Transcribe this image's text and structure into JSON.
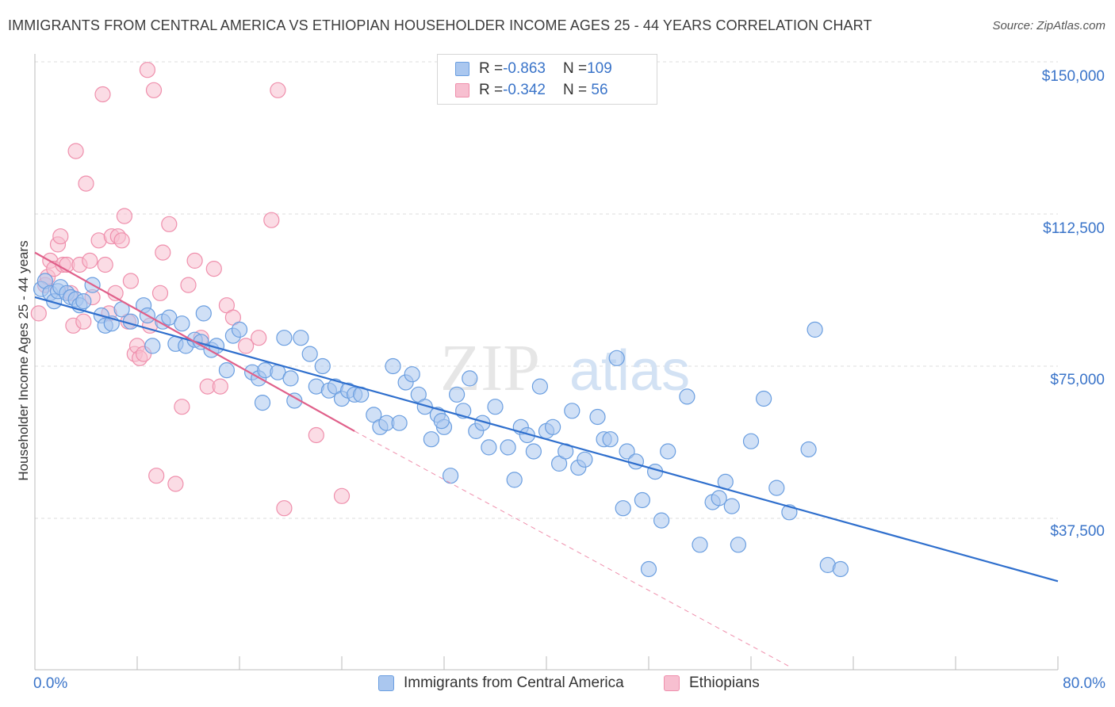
{
  "header": {
    "title": "IMMIGRANTS FROM CENTRAL AMERICA VS ETHIOPIAN HOUSEHOLDER INCOME AGES 25 - 44 YEARS CORRELATION CHART",
    "source": "Source: ZipAtlas.com"
  },
  "watermark": {
    "zip": "ZIP",
    "atlas": "atlas"
  },
  "legend": {
    "series1": {
      "r_label": "R = ",
      "r_value": "-0.863",
      "n_label": "N = ",
      "n_value": "109",
      "color": "#6a9ee0"
    },
    "series2": {
      "r_label": "R = ",
      "r_value": "-0.342",
      "n_label": "N = ",
      "n_value": " 56",
      "color": "#ef8fac"
    }
  },
  "bottom_legend": {
    "item1": "Immigrants from Central America",
    "item2": "Ethiopians"
  },
  "colors": {
    "blue_fill": "#aac7ef",
    "blue_stroke": "#6a9ee0",
    "blue_line": "#2f6fcd",
    "pink_fill": "#f7bfd0",
    "pink_stroke": "#ef8fac",
    "pink_line": "#e0608a",
    "tick_text": "#3a74c9"
  },
  "chart_data": {
    "type": "scatter",
    "title": "IMMIGRANTS FROM CENTRAL AMERICA VS ETHIOPIAN HOUSEHOLDER INCOME AGES 25 - 44 YEARS CORRELATION CHART",
    "xlabel": "",
    "ylabel": "Householder Income Ages 25 - 44 years",
    "xlim": [
      0,
      80
    ],
    "ylim": [
      0,
      155000
    ],
    "x_tick_labels": [
      "0.0%",
      "80.0%"
    ],
    "y_ticks": [
      37500,
      75000,
      112500,
      150000
    ],
    "y_tick_labels": [
      "$37,500",
      "$75,000",
      "$112,500",
      "$150,000"
    ],
    "grid": "horizontal dashed",
    "legend_position": "top-center",
    "series": [
      {
        "name": "Immigrants from Central America",
        "r": -0.863,
        "n": 109,
        "trend": {
          "x": [
            0,
            80
          ],
          "y": [
            92000,
            22000
          ]
        },
        "points": [
          [
            0.5,
            94000
          ],
          [
            0.8,
            96000
          ],
          [
            1.2,
            93000
          ],
          [
            1.5,
            91000
          ],
          [
            1.8,
            93500
          ],
          [
            2.0,
            94500
          ],
          [
            2.5,
            93000
          ],
          [
            2.8,
            92000
          ],
          [
            3.2,
            91500
          ],
          [
            3.5,
            90000
          ],
          [
            3.8,
            91000
          ],
          [
            4.5,
            95000
          ],
          [
            5.2,
            87500
          ],
          [
            5.5,
            85000
          ],
          [
            6.0,
            85500
          ],
          [
            6.8,
            89000
          ],
          [
            7.5,
            86000
          ],
          [
            8.5,
            90000
          ],
          [
            8.8,
            87500
          ],
          [
            9.2,
            80000
          ],
          [
            10.0,
            86000
          ],
          [
            10.5,
            87000
          ],
          [
            11.0,
            80500
          ],
          [
            11.5,
            85500
          ],
          [
            11.8,
            80000
          ],
          [
            12.5,
            81500
          ],
          [
            13.0,
            81000
          ],
          [
            13.2,
            88000
          ],
          [
            13.8,
            79000
          ],
          [
            14.2,
            80000
          ],
          [
            15.0,
            74000
          ],
          [
            15.5,
            82500
          ],
          [
            16.0,
            84000
          ],
          [
            17.0,
            73500
          ],
          [
            17.5,
            72000
          ],
          [
            17.8,
            66000
          ],
          [
            18.0,
            74000
          ],
          [
            19.0,
            73500
          ],
          [
            19.5,
            82000
          ],
          [
            20.0,
            72000
          ],
          [
            20.3,
            66500
          ],
          [
            20.8,
            82000
          ],
          [
            21.5,
            78000
          ],
          [
            22.0,
            70000
          ],
          [
            22.5,
            75000
          ],
          [
            23.0,
            69000
          ],
          [
            23.5,
            70000
          ],
          [
            24.0,
            67000
          ],
          [
            24.5,
            69000
          ],
          [
            25.0,
            68000
          ],
          [
            25.5,
            68000
          ],
          [
            26.5,
            63000
          ],
          [
            27.0,
            60000
          ],
          [
            27.5,
            61000
          ],
          [
            28.5,
            61000
          ],
          [
            28.0,
            75000
          ],
          [
            29.0,
            71000
          ],
          [
            29.5,
            73000
          ],
          [
            30.0,
            68000
          ],
          [
            30.5,
            65000
          ],
          [
            31.0,
            57000
          ],
          [
            31.5,
            63000
          ],
          [
            32.0,
            60000
          ],
          [
            31.8,
            61500
          ],
          [
            32.5,
            48000
          ],
          [
            33.0,
            68000
          ],
          [
            33.5,
            64000
          ],
          [
            34.0,
            72000
          ],
          [
            34.5,
            59000
          ],
          [
            35.0,
            61000
          ],
          [
            35.5,
            55000
          ],
          [
            36.0,
            65000
          ],
          [
            37.0,
            55000
          ],
          [
            37.5,
            47000
          ],
          [
            38.0,
            60000
          ],
          [
            38.5,
            58000
          ],
          [
            39.0,
            54000
          ],
          [
            39.5,
            70000
          ],
          [
            40.0,
            59000
          ],
          [
            40.5,
            60000
          ],
          [
            41.0,
            51000
          ],
          [
            41.5,
            54000
          ],
          [
            42.0,
            64000
          ],
          [
            42.5,
            50000
          ],
          [
            43.0,
            52000
          ],
          [
            44.0,
            62500
          ],
          [
            44.5,
            57000
          ],
          [
            45.0,
            57000
          ],
          [
            45.5,
            77000
          ],
          [
            46.0,
            40000
          ],
          [
            46.3,
            54000
          ],
          [
            47.0,
            51500
          ],
          [
            47.5,
            42000
          ],
          [
            48.0,
            25000
          ],
          [
            48.5,
            49000
          ],
          [
            49.0,
            37000
          ],
          [
            49.5,
            54000
          ],
          [
            51.0,
            67500
          ],
          [
            52.0,
            31000
          ],
          [
            53.0,
            41500
          ],
          [
            53.5,
            42500
          ],
          [
            54.0,
            46500
          ],
          [
            55.0,
            31000
          ],
          [
            54.5,
            40500
          ],
          [
            56.0,
            56500
          ],
          [
            57.0,
            67000
          ],
          [
            58.0,
            45000
          ],
          [
            59.0,
            39000
          ],
          [
            60.5,
            54500
          ],
          [
            61.0,
            84000
          ],
          [
            62.0,
            26000
          ],
          [
            63.0,
            25000
          ]
        ]
      },
      {
        "name": "Ethiopians",
        "r": -0.342,
        "n": 56,
        "trend": {
          "x": [
            0,
            25
          ],
          "y": [
            103000,
            59000
          ]
        },
        "trend_dashed": {
          "x": [
            25,
            59
          ],
          "y": [
            59000,
            1000
          ]
        },
        "points": [
          [
            0.3,
            88000
          ],
          [
            0.8,
            95000
          ],
          [
            1.0,
            97000
          ],
          [
            1.2,
            101000
          ],
          [
            1.5,
            99000
          ],
          [
            1.8,
            105000
          ],
          [
            2.0,
            107000
          ],
          [
            2.2,
            100000
          ],
          [
            2.5,
            100000
          ],
          [
            2.8,
            93000
          ],
          [
            3.0,
            85000
          ],
          [
            3.2,
            128000
          ],
          [
            3.5,
            100000
          ],
          [
            3.8,
            86000
          ],
          [
            4.0,
            120000
          ],
          [
            4.3,
            101000
          ],
          [
            4.5,
            92000
          ],
          [
            5.0,
            106000
          ],
          [
            5.3,
            142000
          ],
          [
            5.5,
            100000
          ],
          [
            5.8,
            88000
          ],
          [
            6.0,
            107000
          ],
          [
            6.3,
            93000
          ],
          [
            6.5,
            107000
          ],
          [
            6.8,
            106000
          ],
          [
            7.0,
            112000
          ],
          [
            7.3,
            86000
          ],
          [
            7.5,
            96000
          ],
          [
            7.8,
            78000
          ],
          [
            8.0,
            80000
          ],
          [
            8.2,
            77000
          ],
          [
            8.5,
            78000
          ],
          [
            8.8,
            148000
          ],
          [
            9.0,
            85000
          ],
          [
            9.3,
            143000
          ],
          [
            9.5,
            48000
          ],
          [
            9.8,
            93000
          ],
          [
            10.0,
            103000
          ],
          [
            10.5,
            110000
          ],
          [
            11.0,
            46000
          ],
          [
            11.5,
            65000
          ],
          [
            12.0,
            95000
          ],
          [
            12.5,
            101000
          ],
          [
            13.0,
            82000
          ],
          [
            13.5,
            70000
          ],
          [
            14.0,
            99000
          ],
          [
            14.5,
            70000
          ],
          [
            15.0,
            90000
          ],
          [
            15.5,
            87000
          ],
          [
            16.5,
            80000
          ],
          [
            17.5,
            82000
          ],
          [
            18.5,
            111000
          ],
          [
            19.0,
            143000
          ],
          [
            19.5,
            40000
          ],
          [
            22.0,
            58000
          ],
          [
            24.0,
            43000
          ]
        ]
      }
    ]
  }
}
